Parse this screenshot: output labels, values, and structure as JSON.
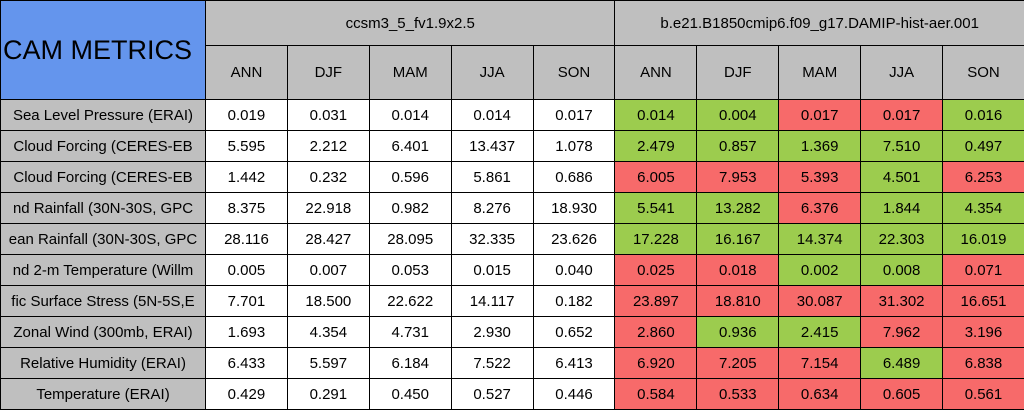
{
  "table": {
    "title": "CAM METRICS",
    "row_labels": [
      "Sea Level Pressure (ERAI)",
      "Cloud Forcing (CERES-EB",
      "Cloud Forcing (CERES-EB",
      "nd Rainfall (30N-30S, GPC",
      "ean Rainfall (30N-30S, GPC",
      "nd 2-m Temperature (Willm",
      "fic Surface Stress (5N-5S,E",
      "Zonal Wind (300mb, ERAI)",
      "Relative Humidity (ERAI)",
      "Temperature (ERAI)"
    ],
    "groups": [
      {
        "name": "ccsm3_5_fv1.9x2.5",
        "columns": [
          "ANN",
          "DJF",
          "MAM",
          "JJA",
          "SON"
        ],
        "rows": [
          [
            "0.019",
            "0.031",
            "0.014",
            "0.014",
            "0.017"
          ],
          [
            "5.595",
            "2.212",
            "6.401",
            "13.437",
            "1.078"
          ],
          [
            "1.442",
            "0.232",
            "0.596",
            "5.861",
            "0.686"
          ],
          [
            "8.375",
            "22.918",
            "0.982",
            "8.276",
            "18.930"
          ],
          [
            "28.116",
            "28.427",
            "28.095",
            "32.335",
            "23.626"
          ],
          [
            "0.005",
            "0.007",
            "0.053",
            "0.015",
            "0.040"
          ],
          [
            "7.701",
            "18.500",
            "22.622",
            "14.117",
            "0.182"
          ],
          [
            "1.693",
            "4.354",
            "4.731",
            "2.930",
            "0.652"
          ],
          [
            "6.433",
            "5.597",
            "6.184",
            "7.522",
            "6.413"
          ],
          [
            "0.429",
            "0.291",
            "0.450",
            "0.527",
            "0.446"
          ]
        ]
      },
      {
        "name": "b.e21.B1850cmip6.f09_g17.DAMIP-hist-aer.001",
        "columns": [
          "ANN",
          "DJF",
          "MAM",
          "JJA",
          "SON"
        ],
        "rows": [
          [
            "0.014",
            "0.004",
            "0.017",
            "0.017",
            "0.016"
          ],
          [
            "2.479",
            "0.857",
            "1.369",
            "7.510",
            "0.497"
          ],
          [
            "6.005",
            "7.953",
            "5.393",
            "4.501",
            "6.253"
          ],
          [
            "5.541",
            "13.282",
            "6.376",
            "1.844",
            "4.354"
          ],
          [
            "17.228",
            "16.167",
            "14.374",
            "22.303",
            "16.019"
          ],
          [
            "0.025",
            "0.018",
            "0.002",
            "0.008",
            "0.071"
          ],
          [
            "23.897",
            "18.810",
            "30.087",
            "31.302",
            "16.651"
          ],
          [
            "2.860",
            "0.936",
            "2.415",
            "7.962",
            "3.196"
          ],
          [
            "6.920",
            "7.205",
            "7.154",
            "6.489",
            "6.838"
          ],
          [
            "0.584",
            "0.533",
            "0.634",
            "0.605",
            "0.561"
          ]
        ],
        "cell_colors": [
          [
            "#9ccc4e",
            "#9ccc4e",
            "#f76a6a",
            "#f76a6a",
            "#9ccc4e"
          ],
          [
            "#9ccc4e",
            "#9ccc4e",
            "#9ccc4e",
            "#9ccc4e",
            "#9ccc4e"
          ],
          [
            "#f76a6a",
            "#f76a6a",
            "#f76a6a",
            "#9ccc4e",
            "#f76a6a"
          ],
          [
            "#9ccc4e",
            "#9ccc4e",
            "#f76a6a",
            "#9ccc4e",
            "#9ccc4e"
          ],
          [
            "#9ccc4e",
            "#9ccc4e",
            "#9ccc4e",
            "#9ccc4e",
            "#9ccc4e"
          ],
          [
            "#f76a6a",
            "#f76a6a",
            "#9ccc4e",
            "#9ccc4e",
            "#f76a6a"
          ],
          [
            "#f76a6a",
            "#f76a6a",
            "#f76a6a",
            "#f76a6a",
            "#f76a6a"
          ],
          [
            "#f76a6a",
            "#9ccc4e",
            "#9ccc4e",
            "#f76a6a",
            "#f76a6a"
          ],
          [
            "#f76a6a",
            "#f76a6a",
            "#f76a6a",
            "#9ccc4e",
            "#f76a6a"
          ],
          [
            "#f76a6a",
            "#f76a6a",
            "#f76a6a",
            "#f76a6a",
            "#f76a6a"
          ]
        ]
      }
    ]
  }
}
